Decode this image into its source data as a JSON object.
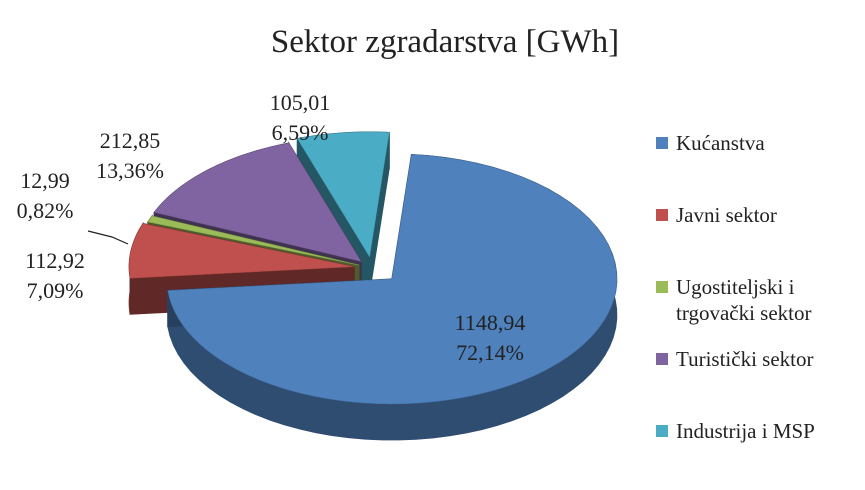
{
  "chart_data": {
    "type": "pie",
    "title": "Sektor zgradarstva [GWh]",
    "categories": [
      "Kućanstva",
      "Javni sektor",
      "Ugostiteljski i trgovački sektor",
      "Turistički sektor",
      "Industrija i MSP"
    ],
    "values": [
      1148.94,
      112.92,
      12.99,
      212.85,
      105.01
    ],
    "value_labels": [
      "1148,94",
      "112,92",
      "12,99",
      "212,85",
      "105,01"
    ],
    "percentages": [
      72.14,
      7.09,
      0.82,
      13.36,
      6.59
    ],
    "percentage_labels": [
      "72,14%",
      "7,09%",
      "0,82%",
      "13,36%",
      "6,59%"
    ],
    "colors": [
      "#4f81bd",
      "#c0504d",
      "#9bbb59",
      "#8064a2",
      "#4bacc6"
    ],
    "legend": "right"
  }
}
